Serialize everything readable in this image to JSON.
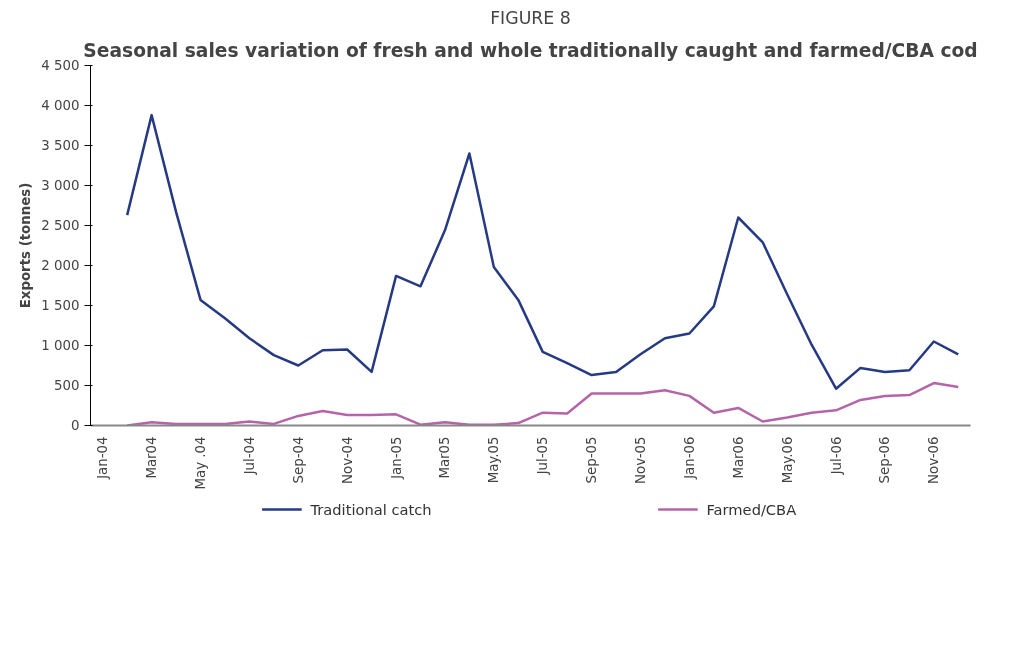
{
  "chart_data": {
    "type": "line",
    "title": "FIGURE 8",
    "subtitle": "Seasonal sales variation of fresh and whole traditionally caught and farmed/CBA cod",
    "ylabel": "Exports (tonnes)",
    "categories": [
      "Jan-04",
      null,
      "Mar04",
      null,
      "May .04",
      null,
      "Jul-04",
      null,
      "Sep-04",
      null,
      "Nov-04",
      null,
      "Jan-05",
      null,
      "Mar05",
      null,
      "May.05",
      null,
      "Jul-05",
      null,
      "Sep-05",
      null,
      "Nov-05",
      null,
      "Jan-06",
      null,
      "Mar06",
      null,
      "May.06",
      null,
      "Jul-06",
      null,
      "Sep-06",
      null,
      "Nov-06",
      null
    ],
    "series": [
      {
        "name": "Traditional catch",
        "color": "#263a84",
        "values": [
          null,
          2630,
          3880,
          2670,
          1570,
          1340,
          1090,
          880,
          750,
          940,
          950,
          670,
          1870,
          1740,
          2440,
          3400,
          1980,
          1570,
          920,
          780,
          630,
          670,
          890,
          1090,
          1150,
          1490,
          2600,
          2290,
          1640,
          1010,
          460,
          720,
          670,
          690,
          1050,
          890
        ]
      },
      {
        "name": "Farmed/CBA",
        "color": "#b565a7",
        "values": [
          null,
          0,
          40,
          20,
          20,
          20,
          50,
          20,
          120,
          180,
          130,
          130,
          140,
          10,
          40,
          10,
          10,
          30,
          160,
          150,
          400,
          400,
          400,
          440,
          370,
          160,
          220,
          50,
          100,
          160,
          190,
          320,
          370,
          380,
          530,
          480
        ]
      }
    ],
    "ylim": [
      0,
      4500
    ],
    "yticks": [
      {
        "value": 0,
        "label": "0"
      },
      {
        "value": 500,
        "label": "500"
      },
      {
        "value": 1000,
        "label": "1 000"
      },
      {
        "value": 1500,
        "label": "1 500"
      },
      {
        "value": 2000,
        "label": "2 000"
      },
      {
        "value": 2500,
        "label": "2 500"
      },
      {
        "value": 3000,
        "label": "3 000"
      },
      {
        "value": 3500,
        "label": "3 500"
      },
      {
        "value": 4000,
        "label": "4 000"
      },
      {
        "value": 4500,
        "label": "4 500"
      }
    ],
    "grid": false,
    "legend": "bottom",
    "marker": "none",
    "line_style": "solid"
  }
}
